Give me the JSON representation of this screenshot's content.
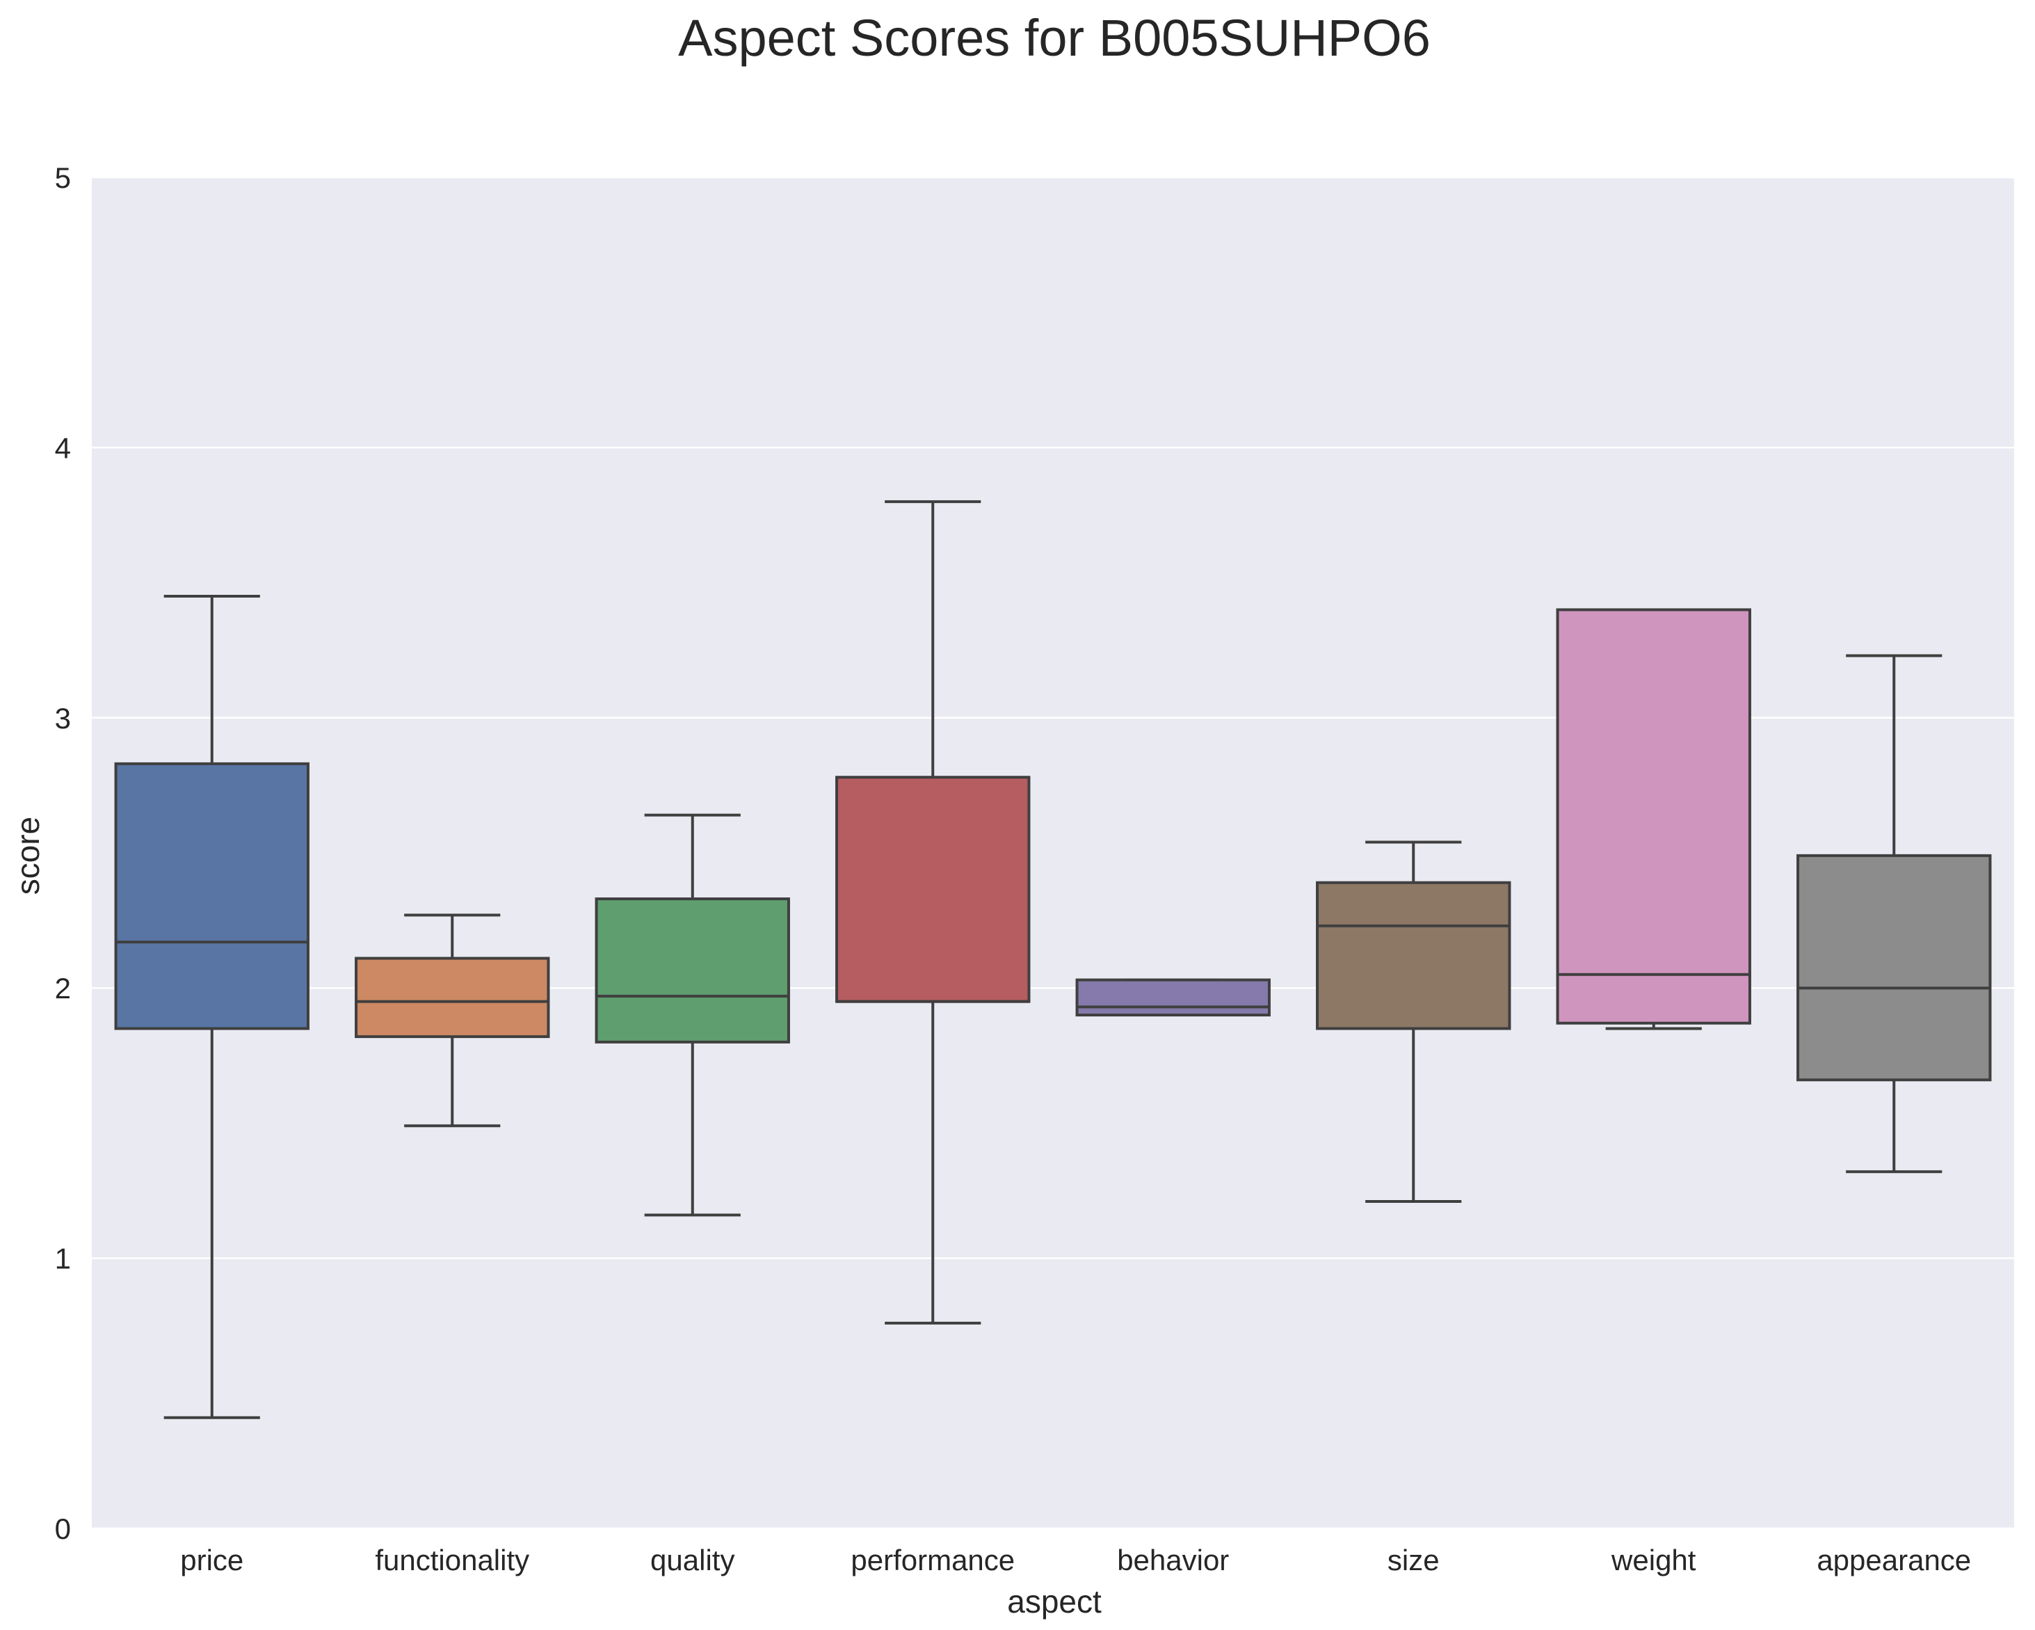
{
  "chart_data": {
    "type": "box",
    "title": "Aspect Scores for B005SUHPO6",
    "xlabel": "aspect",
    "ylabel": "score",
    "ylim": [
      0,
      5
    ],
    "yticks": [
      0,
      1,
      2,
      3,
      4,
      5
    ],
    "grid": true,
    "categories": [
      "price",
      "functionality",
      "quality",
      "performance",
      "behavior",
      "size",
      "weight",
      "appearance"
    ],
    "boxes": [
      {
        "category": "price",
        "whisker_low": 0.41,
        "q1": 1.85,
        "median": 2.17,
        "q3": 2.83,
        "whisker_high": 3.45,
        "color": "#5875a4"
      },
      {
        "category": "functionality",
        "whisker_low": 1.49,
        "q1": 1.82,
        "median": 1.95,
        "q3": 2.11,
        "whisker_high": 2.27,
        "color": "#cc8963"
      },
      {
        "category": "quality",
        "whisker_low": 1.16,
        "q1": 1.8,
        "median": 1.97,
        "q3": 2.33,
        "whisker_high": 2.64,
        "color": "#5f9e6e"
      },
      {
        "category": "performance",
        "whisker_low": 0.76,
        "q1": 1.95,
        "median": 1.95,
        "q3": 2.78,
        "whisker_high": 3.8,
        "color": "#b55d60"
      },
      {
        "category": "behavior",
        "whisker_low": 1.9,
        "q1": 1.9,
        "median": 1.93,
        "q3": 2.03,
        "whisker_high": 2.03,
        "color": "#857aab"
      },
      {
        "category": "size",
        "whisker_low": 1.21,
        "q1": 1.85,
        "median": 2.23,
        "q3": 2.39,
        "whisker_high": 2.54,
        "color": "#8d7866"
      },
      {
        "category": "weight",
        "whisker_low": 1.85,
        "q1": 1.87,
        "median": 2.05,
        "q3": 3.4,
        "whisker_high": 3.4,
        "color": "#d095bf"
      },
      {
        "category": "appearance",
        "whisker_low": 1.32,
        "q1": 1.66,
        "median": 2.0,
        "q3": 2.49,
        "whisker_high": 3.23,
        "color": "#8c8c8c"
      }
    ],
    "colors": {
      "plot_background": "#eaeaf2",
      "grid": "#ffffff",
      "box_edge": "#3f3f3f",
      "text": "#262626"
    }
  }
}
